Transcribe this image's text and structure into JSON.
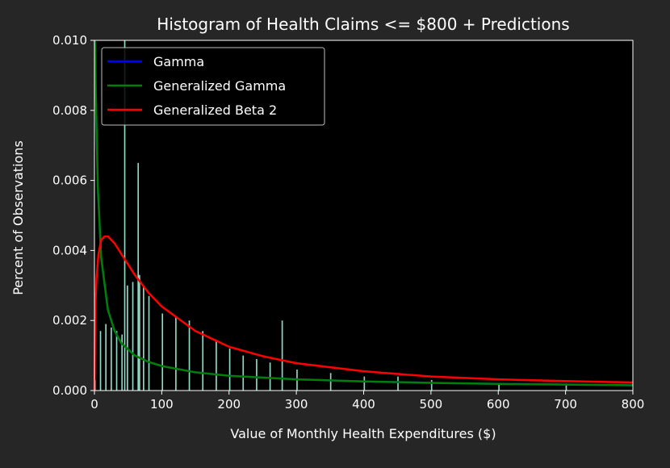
{
  "chart_data": {
    "type": "bar",
    "title": "Histogram of Health Claims <= $800 + Predictions",
    "xlabel": "Value of Monthly Health Expenditures ($)",
    "ylabel": "Percent of Observations",
    "xlim": [
      0,
      800
    ],
    "ylim": [
      0,
      0.01
    ],
    "x_ticks": [
      "0",
      "100",
      "200",
      "300",
      "400",
      "500",
      "600",
      "700",
      "800"
    ],
    "y_ticks": [
      "0.000",
      "0.002",
      "0.004",
      "0.006",
      "0.008",
      "0.010"
    ],
    "legend_position": "top-left",
    "histogram": {
      "bin_width": 2,
      "bin_starts": [
        0,
        8,
        16,
        24,
        32,
        40,
        44,
        48,
        56,
        64,
        66,
        72,
        80,
        100,
        120,
        140,
        160,
        180,
        200,
        220,
        240,
        260,
        278,
        300,
        350,
        400,
        450,
        500,
        600,
        700
      ],
      "values": [
        0.0003,
        0.0017,
        0.0019,
        0.0018,
        0.0017,
        0.0016,
        0.01,
        0.003,
        0.0031,
        0.0065,
        0.0033,
        0.003,
        0.0027,
        0.0022,
        0.0021,
        0.002,
        0.0017,
        0.0014,
        0.0012,
        0.001,
        0.0009,
        0.0008,
        0.002,
        0.0006,
        0.0005,
        0.0004,
        0.0004,
        0.0003,
        0.0002,
        0.0002
      ],
      "color": "#8fd8c6"
    },
    "series": [
      {
        "name": "Gamma",
        "color": "#0000ff",
        "x": [
          0.5,
          1,
          2,
          5,
          10,
          20,
          30,
          40,
          60,
          80,
          100,
          150,
          200,
          300,
          400,
          500,
          600,
          700,
          800
        ],
        "values": [
          0.01,
          0.0098,
          0.0085,
          0.0058,
          0.0038,
          0.0023,
          0.0017,
          0.00135,
          0.001,
          0.00082,
          0.0007,
          0.00052,
          0.00042,
          0.00032,
          0.00026,
          0.00022,
          0.00019,
          0.00017,
          0.00015
        ]
      },
      {
        "name": "Generalized Gamma",
        "color": "#008000",
        "x": [
          0.5,
          1,
          2,
          5,
          10,
          20,
          30,
          40,
          60,
          80,
          100,
          150,
          200,
          300,
          400,
          500,
          600,
          700,
          800
        ],
        "values": [
          0.01,
          0.0098,
          0.0085,
          0.0058,
          0.0038,
          0.0023,
          0.0017,
          0.00135,
          0.001,
          0.00082,
          0.0007,
          0.00052,
          0.00042,
          0.00032,
          0.00026,
          0.00022,
          0.00019,
          0.00017,
          0.00015
        ]
      },
      {
        "name": "Generalized Beta 2",
        "color": "#ff0000",
        "x": [
          0,
          1,
          3,
          6,
          10,
          15,
          20,
          25,
          30,
          40,
          50,
          60,
          80,
          100,
          150,
          200,
          250,
          300,
          400,
          500,
          600,
          700,
          800
        ],
        "values": [
          0.0,
          0.0022,
          0.0032,
          0.0039,
          0.0043,
          0.0044,
          0.0044,
          0.0043,
          0.0042,
          0.0039,
          0.0036,
          0.0033,
          0.0028,
          0.0024,
          0.0017,
          0.00125,
          0.00098,
          0.00078,
          0.00055,
          0.0004,
          0.00032,
          0.00027,
          0.00023
        ]
      }
    ]
  },
  "colors": {
    "figure_background": "#262626",
    "plot_background": "#000000",
    "axis_color": "#ffffff",
    "legend_border": "#bbbbbb"
  }
}
